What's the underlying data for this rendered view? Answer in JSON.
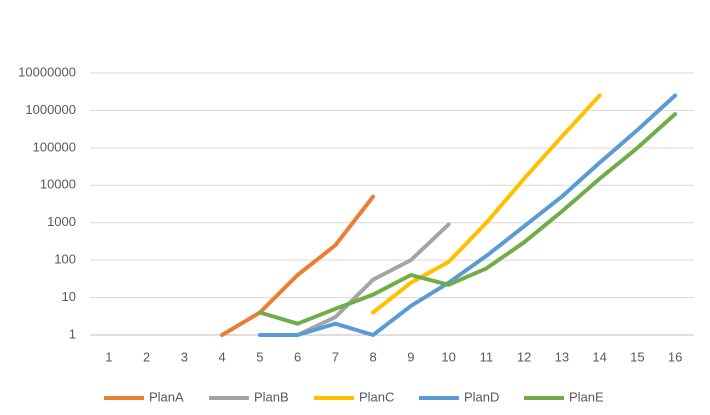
{
  "chart_data": {
    "type": "line",
    "log_scale": true,
    "grid": true,
    "legend": "bottom",
    "categories": [
      "1",
      "2",
      "3",
      "4",
      "5",
      "6",
      "7",
      "8",
      "9",
      "10",
      "11",
      "12",
      "13",
      "14",
      "15",
      "16"
    ],
    "ylim": [
      1,
      10000000
    ],
    "yticks": [
      1,
      10,
      100,
      1000,
      10000,
      100000,
      1000000,
      10000000
    ],
    "series": [
      {
        "name": "PlanA",
        "color": "#ed7d31",
        "values": [
          null,
          null,
          null,
          1,
          4,
          40,
          250,
          5000,
          null,
          null,
          null,
          null,
          null,
          null,
          null,
          null
        ]
      },
      {
        "name": "PlanB",
        "color": "#a5a5a5",
        "values": [
          null,
          null,
          null,
          null,
          null,
          1,
          3,
          30,
          100,
          900,
          null,
          null,
          null,
          null,
          null,
          null
        ]
      },
      {
        "name": "PlanC",
        "color": "#ffc000",
        "values": [
          null,
          null,
          null,
          null,
          null,
          null,
          null,
          4,
          25,
          90,
          1000,
          15000,
          200000,
          2500000,
          null,
          null
        ]
      },
      {
        "name": "PlanD",
        "color": "#5b9bd5",
        "values": [
          null,
          null,
          null,
          null,
          1,
          1,
          2,
          1,
          6,
          25,
          130,
          800,
          5000,
          40000,
          300000,
          2500000
        ]
      },
      {
        "name": "PlanE",
        "color": "#70ad47",
        "values": [
          null,
          null,
          null,
          null,
          4,
          2,
          5,
          12,
          40,
          22,
          60,
          300,
          2000,
          15000,
          100000,
          800000
        ]
      }
    ]
  }
}
